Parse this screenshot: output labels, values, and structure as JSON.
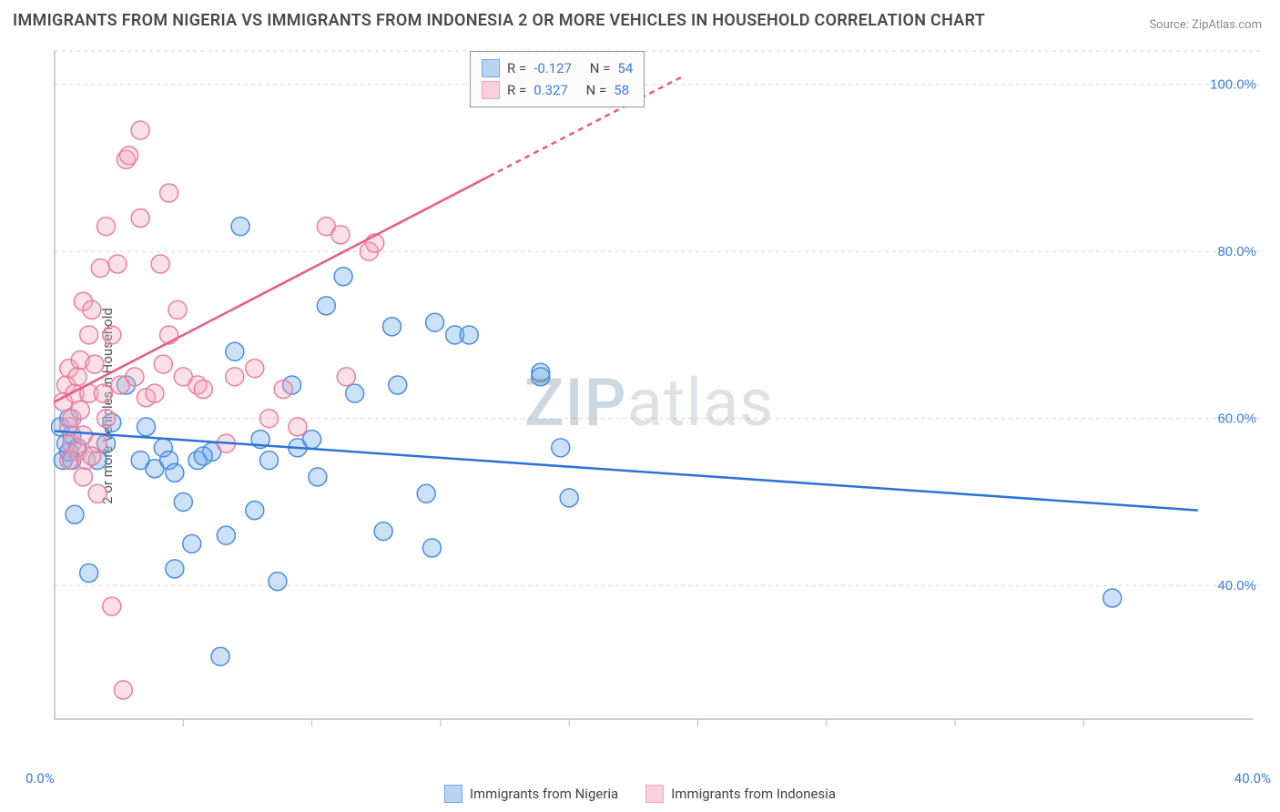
{
  "title": "IMMIGRANTS FROM NIGERIA VS IMMIGRANTS FROM INDONESIA 2 OR MORE VEHICLES IN HOUSEHOLD CORRELATION CHART",
  "source_label": "Source:",
  "source_value": "ZipAtlas.com",
  "y_axis_label": "2 or more Vehicles in Household",
  "watermark": {
    "zip": "ZIP",
    "atlas": "atlas"
  },
  "chart": {
    "type": "scatter",
    "background_color": "#ffffff",
    "grid_color": "#d8d8d8",
    "axis_line_color": "#bdbdbd",
    "xlim": [
      0,
      40
    ],
    "ylim": [
      24,
      104
    ],
    "x_ticks": [
      0,
      40
    ],
    "x_tick_labels": [
      "0.0%",
      "40.0%"
    ],
    "x_minor_ticks": [
      4.5,
      9,
      13.5,
      18,
      22.5,
      27,
      31.5,
      36
    ],
    "y_ticks": [
      40,
      60,
      80,
      100
    ],
    "y_tick_labels": [
      "40.0%",
      "60.0%",
      "80.0%",
      "100.0%"
    ],
    "marker_radius": 10,
    "marker_fill_opacity": 0.35,
    "marker_stroke_width": 1.5,
    "series": [
      {
        "name": "Immigrants from Nigeria",
        "color": "#6ea8e8",
        "stroke": "#4a8edb",
        "R": "-0.127",
        "N": "54",
        "trend": {
          "x1": 0,
          "y1": 58.5,
          "x2": 40,
          "y2": 49.0,
          "color": "#2d72d9",
          "width": 2.5
        },
        "points": [
          [
            0.2,
            59
          ],
          [
            0.3,
            55
          ],
          [
            0.4,
            57
          ],
          [
            0.5,
            60
          ],
          [
            0.5,
            56
          ],
          [
            0.6,
            55
          ],
          [
            0.7,
            48.5
          ],
          [
            0.6,
            58
          ],
          [
            0.8,
            56.5
          ],
          [
            2.0,
            59.5
          ],
          [
            1.2,
            41.5
          ],
          [
            1.5,
            55
          ],
          [
            1.8,
            57
          ],
          [
            2.5,
            64
          ],
          [
            3.0,
            55
          ],
          [
            3.2,
            59
          ],
          [
            3.5,
            54
          ],
          [
            3.8,
            56.5
          ],
          [
            4.0,
            55
          ],
          [
            4.2,
            53.5
          ],
          [
            4.5,
            50
          ],
          [
            5.0,
            55
          ],
          [
            5.5,
            56
          ],
          [
            5.8,
            31.5
          ],
          [
            6.0,
            46
          ],
          [
            6.3,
            68
          ],
          [
            6.5,
            83
          ],
          [
            7.0,
            49
          ],
          [
            7.2,
            57.5
          ],
          [
            7.5,
            55
          ],
          [
            7.8,
            40.5
          ],
          [
            8.3,
            64
          ],
          [
            8.5,
            56.5
          ],
          [
            9.0,
            57.5
          ],
          [
            9.2,
            53
          ],
          [
            9.5,
            73.5
          ],
          [
            10.1,
            77
          ],
          [
            10.5,
            63
          ],
          [
            11.5,
            46.5
          ],
          [
            11.8,
            71
          ],
          [
            12.0,
            64
          ],
          [
            13.0,
            51
          ],
          [
            13.2,
            44.5
          ],
          [
            13.3,
            71.5
          ],
          [
            14.0,
            70
          ],
          [
            14.5,
            70
          ],
          [
            17.0,
            65.5
          ],
          [
            17.7,
            56.5
          ],
          [
            18.0,
            50.5
          ],
          [
            17.0,
            65
          ],
          [
            4.2,
            42
          ],
          [
            5.2,
            55.5
          ],
          [
            37.0,
            38.5
          ],
          [
            4.8,
            45
          ]
        ]
      },
      {
        "name": "Immigrants from Indonesia",
        "color": "#f2a8bb",
        "stroke": "#ea7fa0",
        "R": "0.327",
        "N": "58",
        "trend": {
          "x1": 0,
          "y1": 62.0,
          "x2": 15.2,
          "y2": 89.0,
          "dashed_x2": 22.0,
          "dashed_y2": 101.0,
          "color": "#e85a8a",
          "width": 2.5
        },
        "points": [
          [
            0.3,
            62
          ],
          [
            0.4,
            64
          ],
          [
            0.5,
            66
          ],
          [
            0.5,
            59
          ],
          [
            0.6,
            60
          ],
          [
            0.6,
            57
          ],
          [
            0.7,
            63
          ],
          [
            0.8,
            65
          ],
          [
            0.8,
            56
          ],
          [
            0.9,
            61
          ],
          [
            0.9,
            67
          ],
          [
            1.0,
            58
          ],
          [
            1.0,
            53
          ],
          [
            1.0,
            74
          ],
          [
            1.1,
            55
          ],
          [
            1.2,
            63
          ],
          [
            1.2,
            70
          ],
          [
            1.3,
            73
          ],
          [
            1.4,
            66.5
          ],
          [
            1.5,
            57
          ],
          [
            1.5,
            51
          ],
          [
            1.6,
            78
          ],
          [
            1.7,
            63
          ],
          [
            1.8,
            60
          ],
          [
            1.8,
            83
          ],
          [
            2.0,
            70
          ],
          [
            2.0,
            37.5
          ],
          [
            2.2,
            78.5
          ],
          [
            2.3,
            64
          ],
          [
            2.5,
            91
          ],
          [
            2.6,
            91.5
          ],
          [
            2.8,
            65
          ],
          [
            3.0,
            84
          ],
          [
            3.0,
            94.5
          ],
          [
            3.2,
            62.5
          ],
          [
            3.5,
            63
          ],
          [
            3.7,
            78.5
          ],
          [
            3.8,
            66.5
          ],
          [
            4.0,
            70
          ],
          [
            4.0,
            87
          ],
          [
            4.3,
            73
          ],
          [
            4.5,
            65
          ],
          [
            5.0,
            64
          ],
          [
            5.2,
            63.5
          ],
          [
            6.0,
            57
          ],
          [
            6.3,
            65
          ],
          [
            7.0,
            66
          ],
          [
            7.5,
            60
          ],
          [
            8.0,
            63.5
          ],
          [
            8.5,
            59
          ],
          [
            9.5,
            83
          ],
          [
            10.0,
            82
          ],
          [
            10.2,
            65
          ],
          [
            11.0,
            80
          ],
          [
            11.2,
            81
          ],
          [
            2.4,
            27.5
          ],
          [
            1.3,
            55.5
          ],
          [
            0.5,
            55
          ]
        ]
      }
    ],
    "legend_top": {
      "rows": [
        {
          "swatch_fill": "#b9d4f3",
          "swatch_stroke": "#6ea8e8",
          "R_label": "R =",
          "R": "-0.127",
          "N_label": "N =",
          "N": "54"
        },
        {
          "swatch_fill": "#f9d0db",
          "swatch_stroke": "#f2a8bb",
          "R_label": "R =",
          "R": "0.327",
          "N_label": "N =",
          "N": "58"
        }
      ]
    },
    "legend_bottom": [
      {
        "swatch_fill": "#b9d4f3",
        "swatch_stroke": "#6ea8e8",
        "label": "Immigrants from Nigeria"
      },
      {
        "swatch_fill": "#f9d0db",
        "swatch_stroke": "#f2a8bb",
        "label": "Immigrants from Indonesia"
      }
    ]
  }
}
